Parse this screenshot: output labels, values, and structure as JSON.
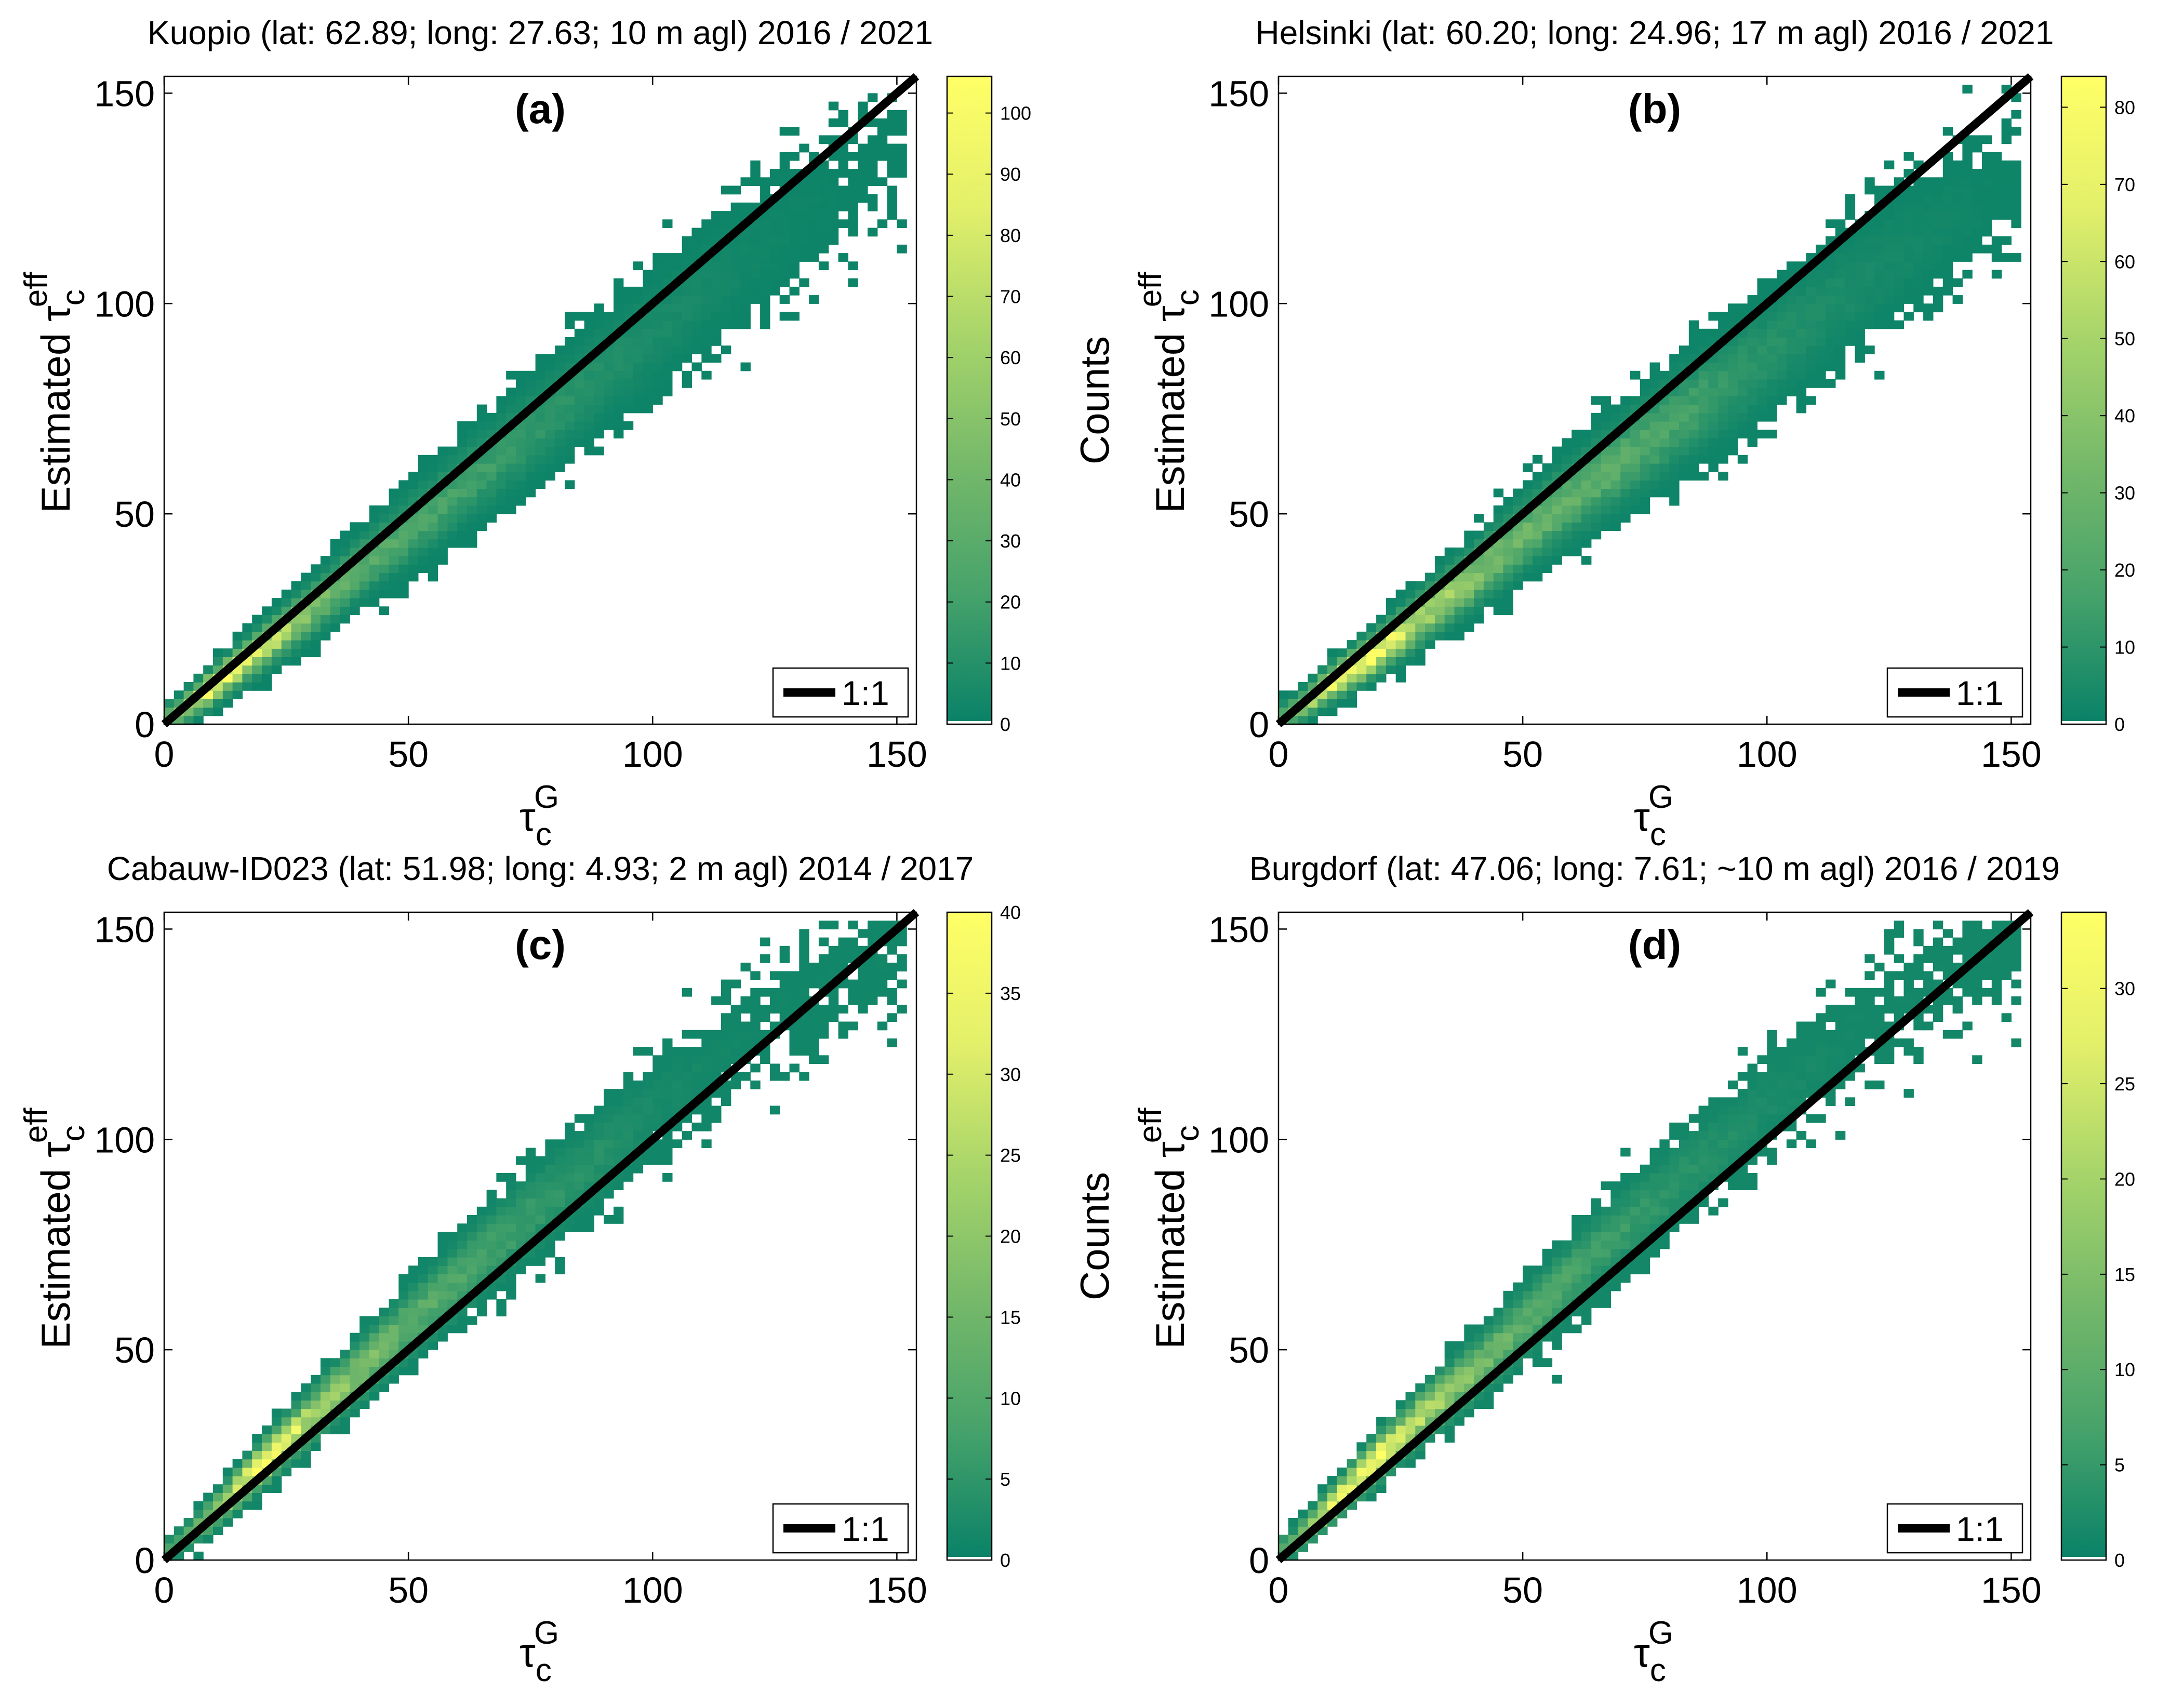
{
  "colormap": {
    "stops": [
      "#0a8268",
      "#47a36a",
      "#76b96a",
      "#a8d56a",
      "#e4f06a",
      "#ffff66"
    ]
  },
  "chart_data": [
    {
      "type": "heatmap",
      "panel_label": "(a)",
      "title": "Kuopio (lat: 62.89; long: 27.63; 10 m agl) 2016 / 2021",
      "xlabel": {
        "base": "τ",
        "sub": "c",
        "sup": "G"
      },
      "ylabel": {
        "prefix": "Estimated ",
        "base": "τ",
        "sub": "c",
        "sup": "eff"
      },
      "xlim": [
        0,
        154
      ],
      "ylim": [
        0,
        154
      ],
      "xticks": [
        "0",
        "50",
        "100",
        "150"
      ],
      "yticks": [
        "0",
        "50",
        "100",
        "150"
      ],
      "colorbar": {
        "label": "Counts",
        "range": [
          0,
          106
        ],
        "ticks": [
          "0",
          "10",
          "20",
          "30",
          "40",
          "50",
          "60",
          "70",
          "80",
          "90",
          "100"
        ]
      },
      "legend": {
        "label": "1:1",
        "placement": "bottom-right"
      },
      "reference_line": {
        "slope": 1,
        "intercept": 0
      },
      "ridge": {
        "x": [
          2,
          10,
          20,
          30,
          40,
          50,
          65,
          80,
          100,
          120,
          140,
          150
        ],
        "y_center": [
          2,
          9,
          18,
          27,
          37,
          46,
          60,
          74,
          93,
          112,
          129,
          136
        ],
        "peak_count": [
          40,
          105,
          80,
          45,
          30,
          25,
          18,
          12,
          6,
          3,
          1,
          1
        ]
      }
    },
    {
      "type": "heatmap",
      "panel_label": "(b)",
      "title": "Helsinki (lat: 60.20; long: 24.96; 17 m agl) 2016 / 2021",
      "xlabel": {
        "base": "τ",
        "sub": "c",
        "sup": "G"
      },
      "ylabel": {
        "prefix": "Estimated ",
        "base": "τ",
        "sub": "c",
        "sup": "eff"
      },
      "xlim": [
        0,
        154
      ],
      "ylim": [
        0,
        154
      ],
      "xticks": [
        "0",
        "50",
        "100",
        "150"
      ],
      "yticks": [
        "0",
        "50",
        "100",
        "150"
      ],
      "colorbar": {
        "label": "Counts",
        "range": [
          0,
          84
        ],
        "ticks": [
          "0",
          "10",
          "20",
          "30",
          "40",
          "50",
          "60",
          "70",
          "80"
        ]
      },
      "legend": {
        "label": "1:1",
        "placement": "bottom-right"
      },
      "reference_line": {
        "slope": 1,
        "intercept": 0
      },
      "ridge": {
        "x": [
          2,
          10,
          20,
          30,
          40,
          50,
          65,
          80,
          100,
          120,
          140,
          150
        ],
        "y_center": [
          2,
          9,
          17,
          26,
          35,
          45,
          58,
          71,
          88,
          106,
          122,
          130
        ],
        "peak_count": [
          30,
          70,
          84,
          50,
          40,
          30,
          25,
          18,
          8,
          4,
          2,
          1
        ]
      }
    },
    {
      "type": "heatmap",
      "panel_label": "(c)",
      "title": "Cabauw-ID023 (lat: 51.98; long:  4.93;  2 m agl) 2014 / 2017",
      "xlabel": {
        "base": "τ",
        "sub": "c",
        "sup": "G"
      },
      "ylabel": {
        "prefix": "Estimated ",
        "base": "τ",
        "sub": "c",
        "sup": "eff"
      },
      "xlim": [
        0,
        154
      ],
      "ylim": [
        0,
        154
      ],
      "xticks": [
        "0",
        "50",
        "100",
        "150"
      ],
      "yticks": [
        "0",
        "50",
        "100",
        "150"
      ],
      "colorbar": {
        "label": "Counts",
        "range": [
          0,
          40
        ],
        "ticks": [
          "0",
          "5",
          "10",
          "15",
          "20",
          "25",
          "30",
          "35",
          "40"
        ]
      },
      "legend": {
        "label": "1:1",
        "placement": "bottom-right"
      },
      "reference_line": {
        "slope": 1,
        "intercept": 0
      },
      "ridge": {
        "x": [
          2,
          10,
          20,
          30,
          40,
          50,
          65,
          80,
          100,
          120,
          140,
          150
        ],
        "y_center": [
          3,
          11,
          23,
          34,
          45,
          56,
          72,
          87,
          107,
          125,
          140,
          146
        ],
        "peak_count": [
          8,
          20,
          40,
          25,
          18,
          12,
          8,
          5,
          2,
          1,
          1,
          1
        ]
      }
    },
    {
      "type": "heatmap",
      "panel_label": "(d)",
      "title": "Burgdorf (lat: 47.06; long:  7.61; ~10 m agl) 2016 / 2019",
      "xlabel": {
        "base": "τ",
        "sub": "c",
        "sup": "G"
      },
      "ylabel": {
        "prefix": "Estimated ",
        "base": "τ",
        "sub": "c",
        "sup": "eff"
      },
      "xlim": [
        0,
        154
      ],
      "ylim": [
        0,
        154
      ],
      "xticks": [
        "0",
        "50",
        "100",
        "150"
      ],
      "yticks": [
        "0",
        "50",
        "100",
        "150"
      ],
      "colorbar": {
        "label": "Counts",
        "range": [
          0,
          34
        ],
        "ticks": [
          "0",
          "5",
          "10",
          "15",
          "20",
          "25",
          "30"
        ]
      },
      "legend": {
        "label": "1:1",
        "placement": "bottom-right"
      },
      "reference_line": {
        "slope": 1,
        "intercept": 0
      },
      "ridge": {
        "x": [
          2,
          10,
          20,
          30,
          40,
          50,
          65,
          80,
          100,
          120,
          140,
          150
        ],
        "y_center": [
          3,
          12,
          24,
          35,
          45,
          56,
          73,
          88,
          108,
          127,
          143,
          148
        ],
        "peak_count": [
          8,
          25,
          34,
          22,
          14,
          10,
          6,
          4,
          2,
          1,
          1,
          1
        ]
      }
    }
  ]
}
